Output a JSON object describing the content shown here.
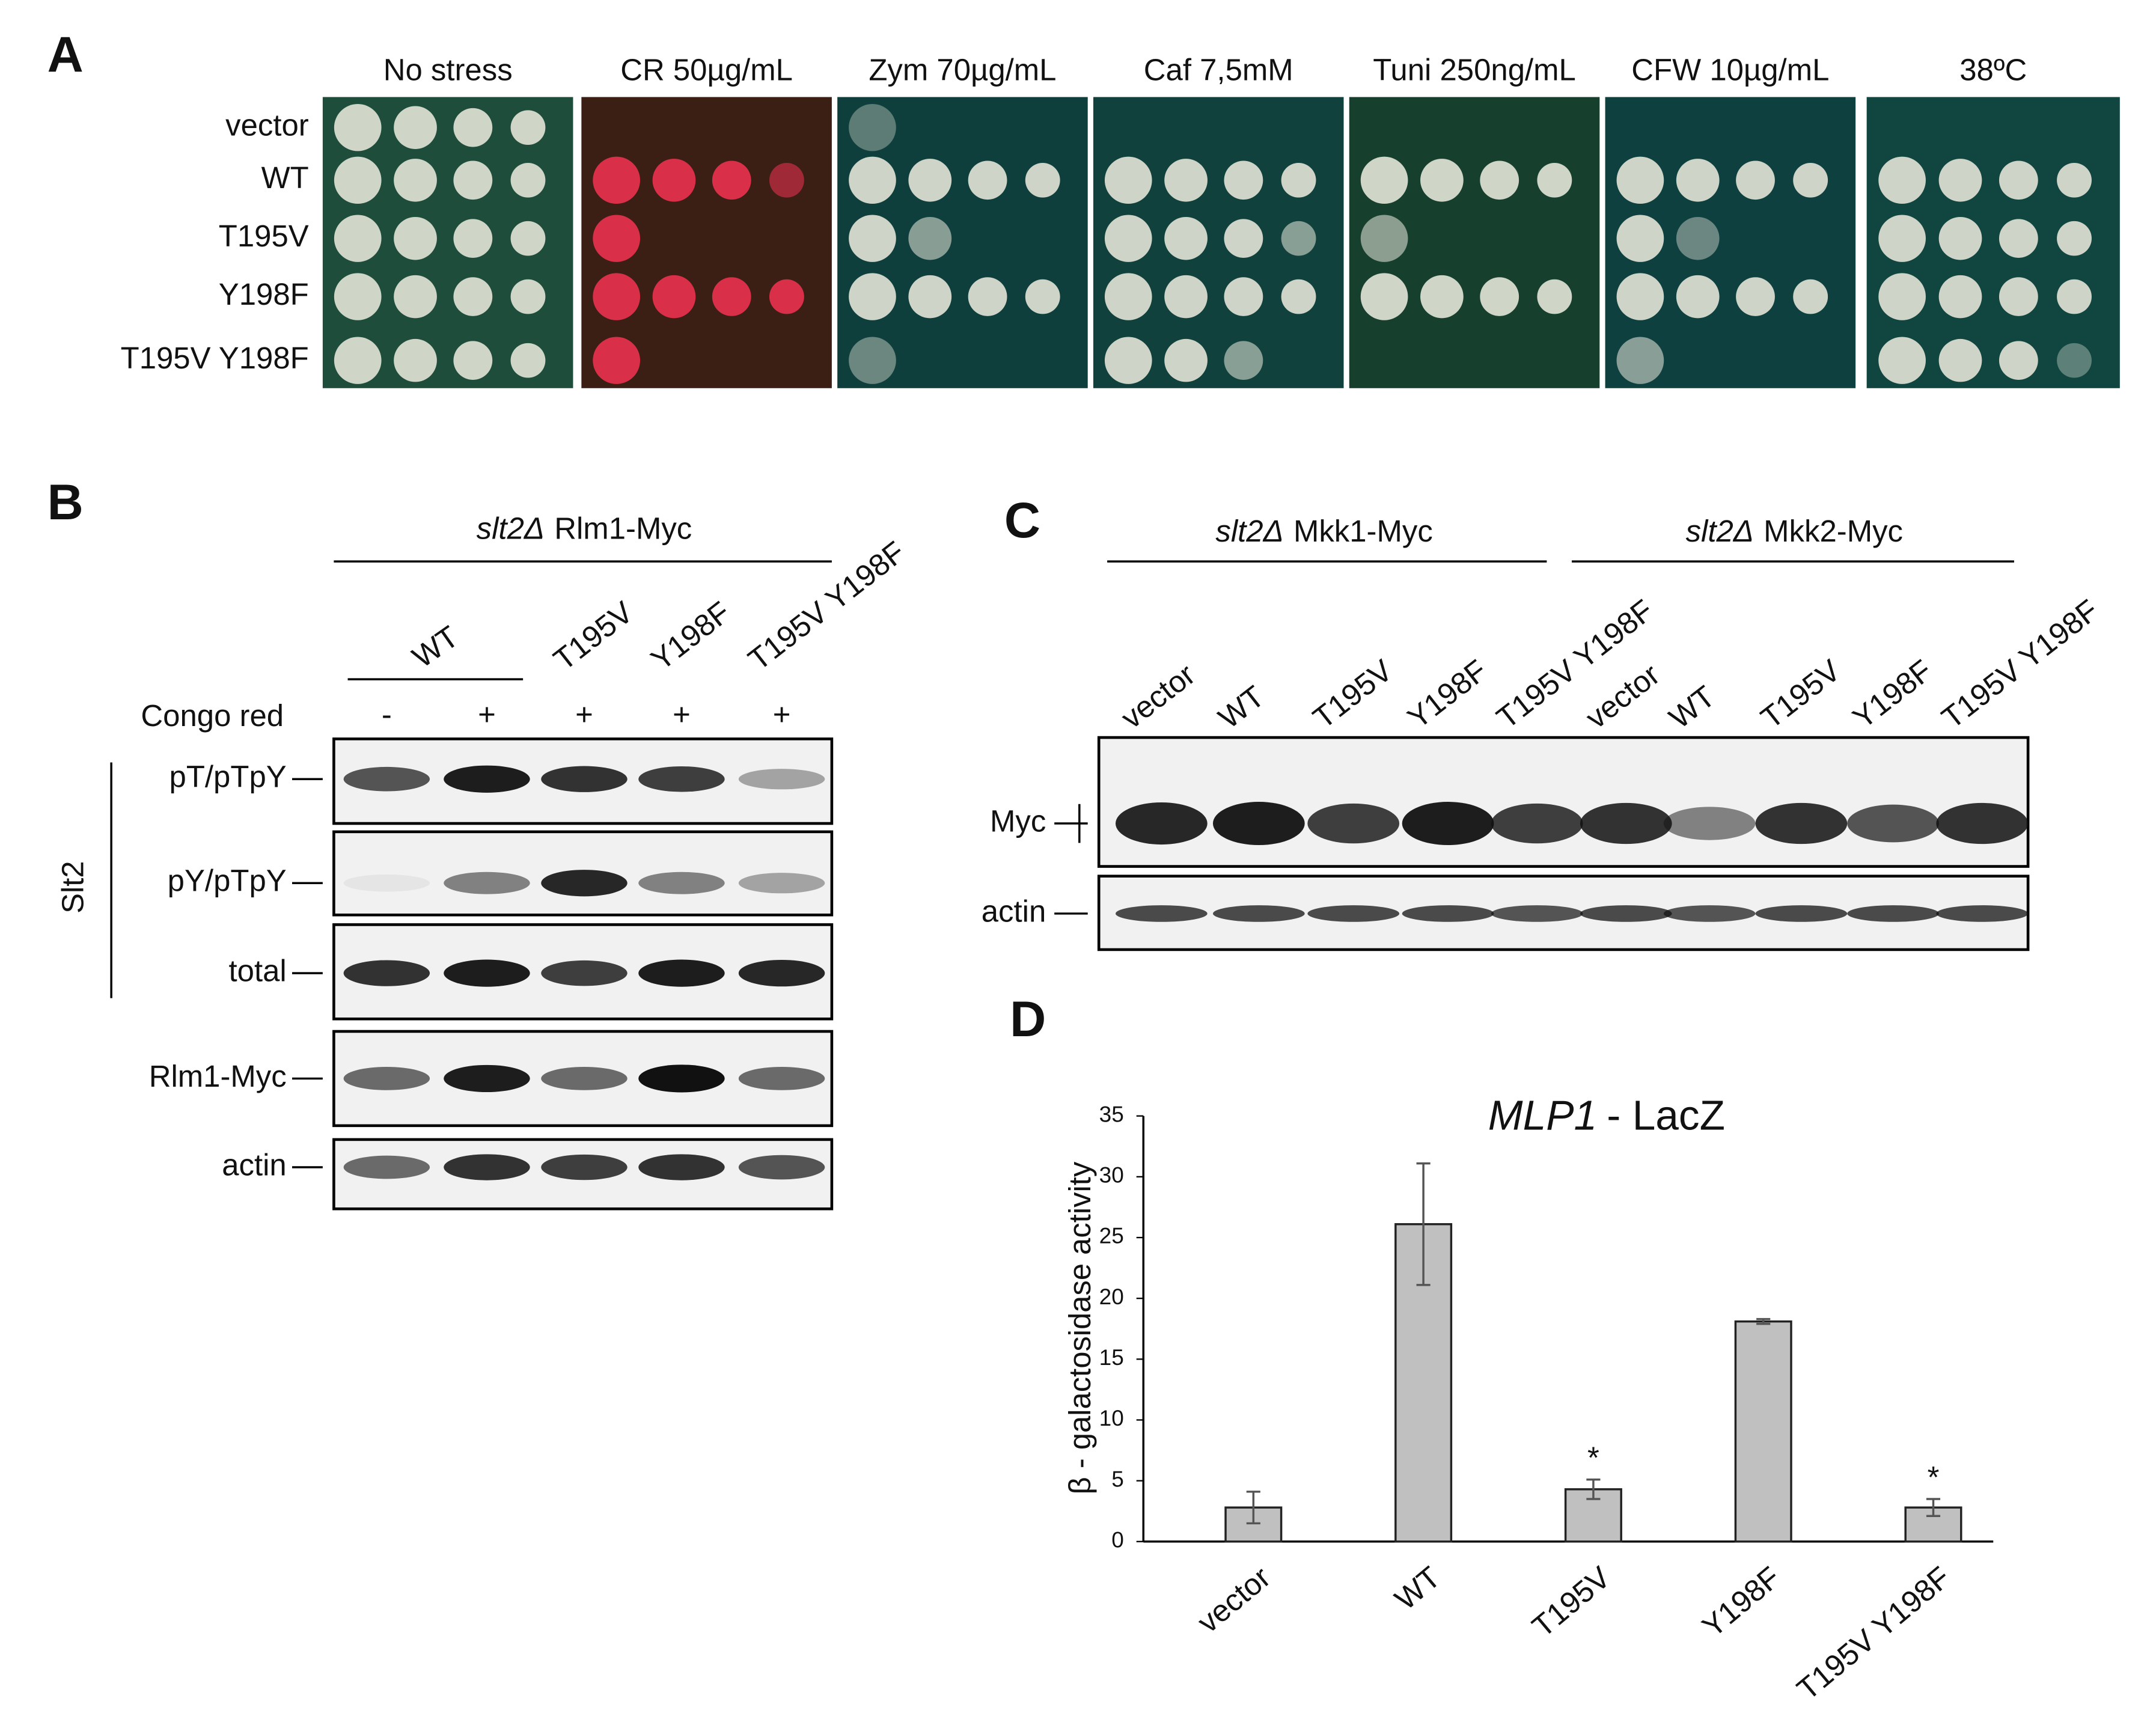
{
  "panel_a": {
    "label": "A",
    "conditions": [
      "No stress",
      "CR 50µg/mL",
      "Zym 70µg/mL",
      "Caf 7,5mM",
      "Tuni 250ng/mL",
      "CFW 10µg/mL",
      "38ºC"
    ],
    "strains": [
      "vector",
      "WT",
      "T195V",
      "Y198F",
      "T195V Y198F"
    ]
  },
  "panel_b": {
    "label": "B",
    "title": {
      "italic": "slt2Δ",
      "text": "Rlm1-Myc"
    },
    "lanes": [
      "WT",
      "T195V",
      "Y198F",
      "T195V Y198F"
    ],
    "treatment": "Congo red",
    "treatment_signs": [
      "-",
      "+",
      "+",
      "+",
      "+"
    ],
    "group_label": "Slt2",
    "rows": [
      "pT/pTpY",
      "pY/pTpY",
      "total",
      "Rlm1-Myc",
      "actin"
    ]
  },
  "panel_c": {
    "label": "C",
    "groups": [
      {
        "italic": "slt2Δ",
        "text": "Mkk1-Myc"
      },
      {
        "italic": "slt2Δ",
        "text": "Mkk2-Myc"
      }
    ],
    "lanes": [
      "vector",
      "WT",
      "T195V",
      "Y198F",
      "T195V Y198F",
      "vector",
      "WT",
      "T195V",
      "Y198F",
      "T195V Y198F"
    ],
    "rows": [
      "Myc",
      "actin"
    ]
  },
  "chart_data": {
    "type": "bar",
    "label": "D",
    "title": {
      "italic": "MLP1",
      "text": "- LacZ"
    },
    "y_label": "β - galactosidase activity",
    "categories": [
      "vector",
      "WT",
      "T195V",
      "Y198F",
      "T195V Y198F"
    ],
    "values": [
      2.8,
      26.1,
      4.3,
      18.1,
      2.8
    ],
    "errors": [
      1.3,
      5,
      0.8,
      0.2,
      0.7
    ],
    "significance": [
      null,
      null,
      "*",
      null,
      "*"
    ],
    "color": "#c0c0c0",
    "ylim": [
      0,
      35
    ],
    "yticks": [
      0,
      5,
      10,
      15,
      20,
      25,
      30,
      35
    ]
  }
}
